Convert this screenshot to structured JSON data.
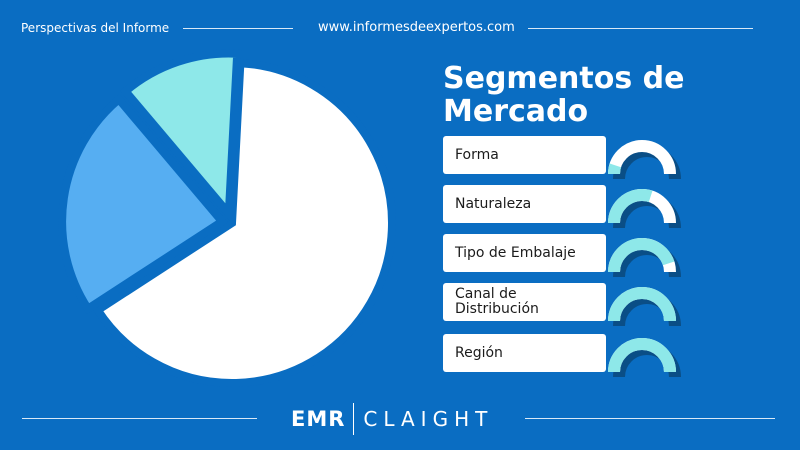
{
  "header": {
    "left_text": "Perspectivas del Informe",
    "url": "www.informesdeexpertos.com"
  },
  "title": "Segmentos de Mercado",
  "segments": [
    {
      "label": "Forma",
      "fill": 0.1
    },
    {
      "label": "Naturaleza",
      "fill": 0.6
    },
    {
      "label": "Tipo de Embalaje",
      "fill": 0.9
    },
    {
      "label": "Canal de\nDistribución",
      "fill": 1.0
    },
    {
      "label": "Región",
      "fill": 1.0
    }
  ],
  "colors": {
    "background": "#0a6dc2",
    "slice_large": "#ffffff",
    "slice_mid": "#56aef2",
    "slice_small": "#8ee8e9",
    "gauge_fill": "#8ee8e9",
    "gauge_track": "#ffffff",
    "gauge_shadow": "#0a4e86"
  },
  "logo": {
    "left": "EMR",
    "right": "CLAIGHT"
  },
  "chart_data": {
    "type": "pie",
    "title": "",
    "categories": [
      "",
      "",
      ""
    ],
    "values": [
      65,
      23,
      12
    ],
    "colors": [
      "#ffffff",
      "#56aef2",
      "#8ee8e9"
    ],
    "exploded": [
      false,
      true,
      true
    ],
    "legend": "none"
  }
}
